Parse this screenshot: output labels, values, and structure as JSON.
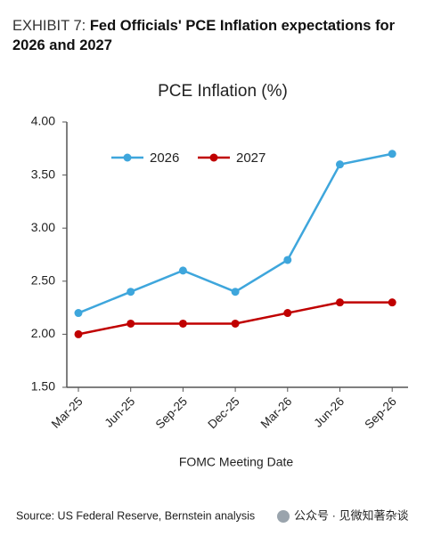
{
  "header": {
    "exhibit": "EXHIBIT 7:",
    "title": "Fed Officials' PCE Inflation expectations for 2026 and 2027"
  },
  "chart_data": {
    "type": "line",
    "title": "PCE Inflation (%)",
    "x_label": "FOMC Meeting Date",
    "categories": [
      "Mar-25",
      "Jun-25",
      "Sep-25",
      "Dec-25",
      "Mar-26",
      "Jun-26",
      "Sep-26"
    ],
    "series": [
      {
        "name": "2026",
        "color": "#3ea6dc",
        "values": [
          2.2,
          2.4,
          2.6,
          2.4,
          2.7,
          3.6,
          3.7
        ]
      },
      {
        "name": "2027",
        "color": "#c00000",
        "values": [
          2.0,
          2.1,
          2.1,
          2.1,
          2.2,
          2.3,
          2.3
        ]
      }
    ],
    "ylim": [
      1.5,
      4.0
    ],
    "yticks": [
      {
        "value": 1.5,
        "label": "1.50"
      },
      {
        "value": 2,
        "label": "2.00"
      },
      {
        "value": 2.5,
        "label": "2.50"
      },
      {
        "value": 3,
        "label": "3.00"
      },
      {
        "value": 3.5,
        "label": "3.50"
      },
      {
        "value": 4,
        "label": "4.00"
      }
    ],
    "grid": false,
    "legend": "top-left"
  },
  "footer": {
    "source": "Source: US Federal Reserve, Bernstein analysis",
    "watermark": "公众号 · 见微知著杂谈"
  }
}
